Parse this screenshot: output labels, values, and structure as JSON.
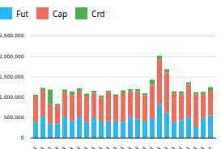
{
  "chart_data": {
    "type": "bar",
    "stacked": true,
    "categories": [
      "01-Jun-2013",
      "02-Jun-2013",
      "03-Jun-2013",
      "04-Jun-2013",
      "05-Jun-2013",
      "08-Jun-2013",
      "09-Jun-2013",
      "10-Jun-2013",
      "11-Jun-2013",
      "12-Jun-2013",
      "15-Jun-2013",
      "16-Jun-2013",
      "17-Jun-2013",
      "18-Jun-2013",
      "19-Jun-2013",
      "22-Jun-2013",
      "23-Jun-2013",
      "24-Jun-2013",
      "25-Jun-2013",
      "26-Jun-2013",
      "27-Jun-2013",
      "28-Jun-2013",
      "29-Jun-2013",
      "30-Jun-2013",
      "01-Jun-2014"
    ],
    "series": [
      {
        "name": "Fut",
        "color": "#29b6f6",
        "values": [
          380000,
          520000,
          340000,
          350000,
          510000,
          420000,
          510000,
          380000,
          500000,
          400000,
          400000,
          400000,
          390000,
          510000,
          460000,
          400000,
          480000,
          800000,
          600000,
          380000,
          430000,
          500000,
          260000,
          490000,
          540000
        ]
      },
      {
        "name": "Cap",
        "color": "#ef6c5a",
        "values": [
          620000,
          630000,
          480000,
          440000,
          620000,
          630000,
          640000,
          630000,
          600000,
          580000,
          700000,
          610000,
          700000,
          630000,
          680000,
          640000,
          820000,
          1120000,
          1000000,
          700000,
          650000,
          800000,
          800000,
          570000,
          610000
        ]
      },
      {
        "name": "Crd",
        "color": "#4caf50",
        "values": [
          50000,
          70000,
          360000,
          40000,
          50000,
          80000,
          60000,
          70000,
          50000,
          50000,
          50000,
          50000,
          70000,
          50000,
          50000,
          50000,
          120000,
          90000,
          80000,
          50000,
          50000,
          60000,
          50000,
          60000,
          90000
        ]
      }
    ],
    "ylim": [
      0,
      2500000
    ],
    "yticks": [
      0,
      {
        "value": 500000,
        "label": "500,000"
      },
      {
        "value": 1000000,
        "label": "1,000,000"
      },
      {
        "value": 1500000,
        "label": "1,500,000"
      },
      {
        "value": 2000000,
        "label": "2,000,000"
      },
      {
        "value": 2500000,
        "label": "2,500,000"
      }
    ],
    "grid": true,
    "legend": "upper left"
  }
}
